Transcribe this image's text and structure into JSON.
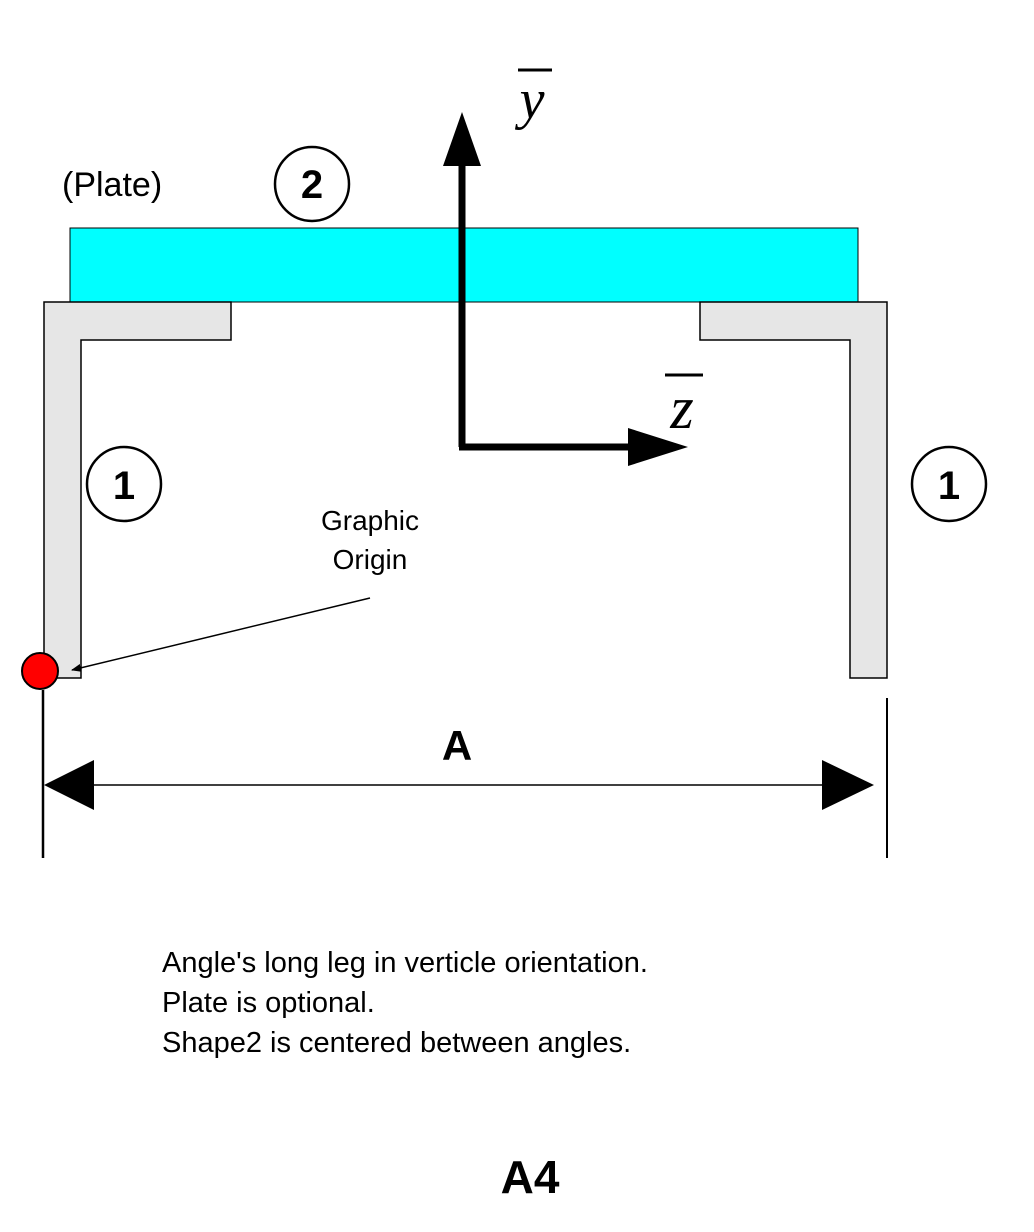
{
  "diagram": {
    "axes": {
      "y_label": "y",
      "z_label": "z"
    },
    "plate": {
      "label": "(Plate)",
      "number": "2",
      "fill_color": "#00ffff"
    },
    "angles": {
      "left_number": "1",
      "right_number": "1",
      "fill_color": "#e6e6e6"
    },
    "origin": {
      "label_line1": "Graphic",
      "label_line2": "Origin",
      "marker_color": "#ff0000"
    },
    "dimension": {
      "label": "A"
    },
    "notes": [
      "Angle's long leg in verticle orientation.",
      "Plate is optional.",
      "Shape2 is centered between angles."
    ],
    "footer_code": "A4"
  }
}
